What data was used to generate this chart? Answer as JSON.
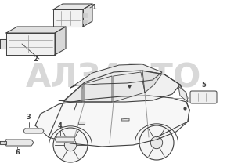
{
  "background_color": "#ffffff",
  "line_color": "#404040",
  "light_line_color": "#999999",
  "watermark_color": "#d8d8d8",
  "watermark_text": "АЛЗАВТО",
  "label_color": "#222222",
  "figsize": [
    2.9,
    2.13
  ],
  "dpi": 100
}
